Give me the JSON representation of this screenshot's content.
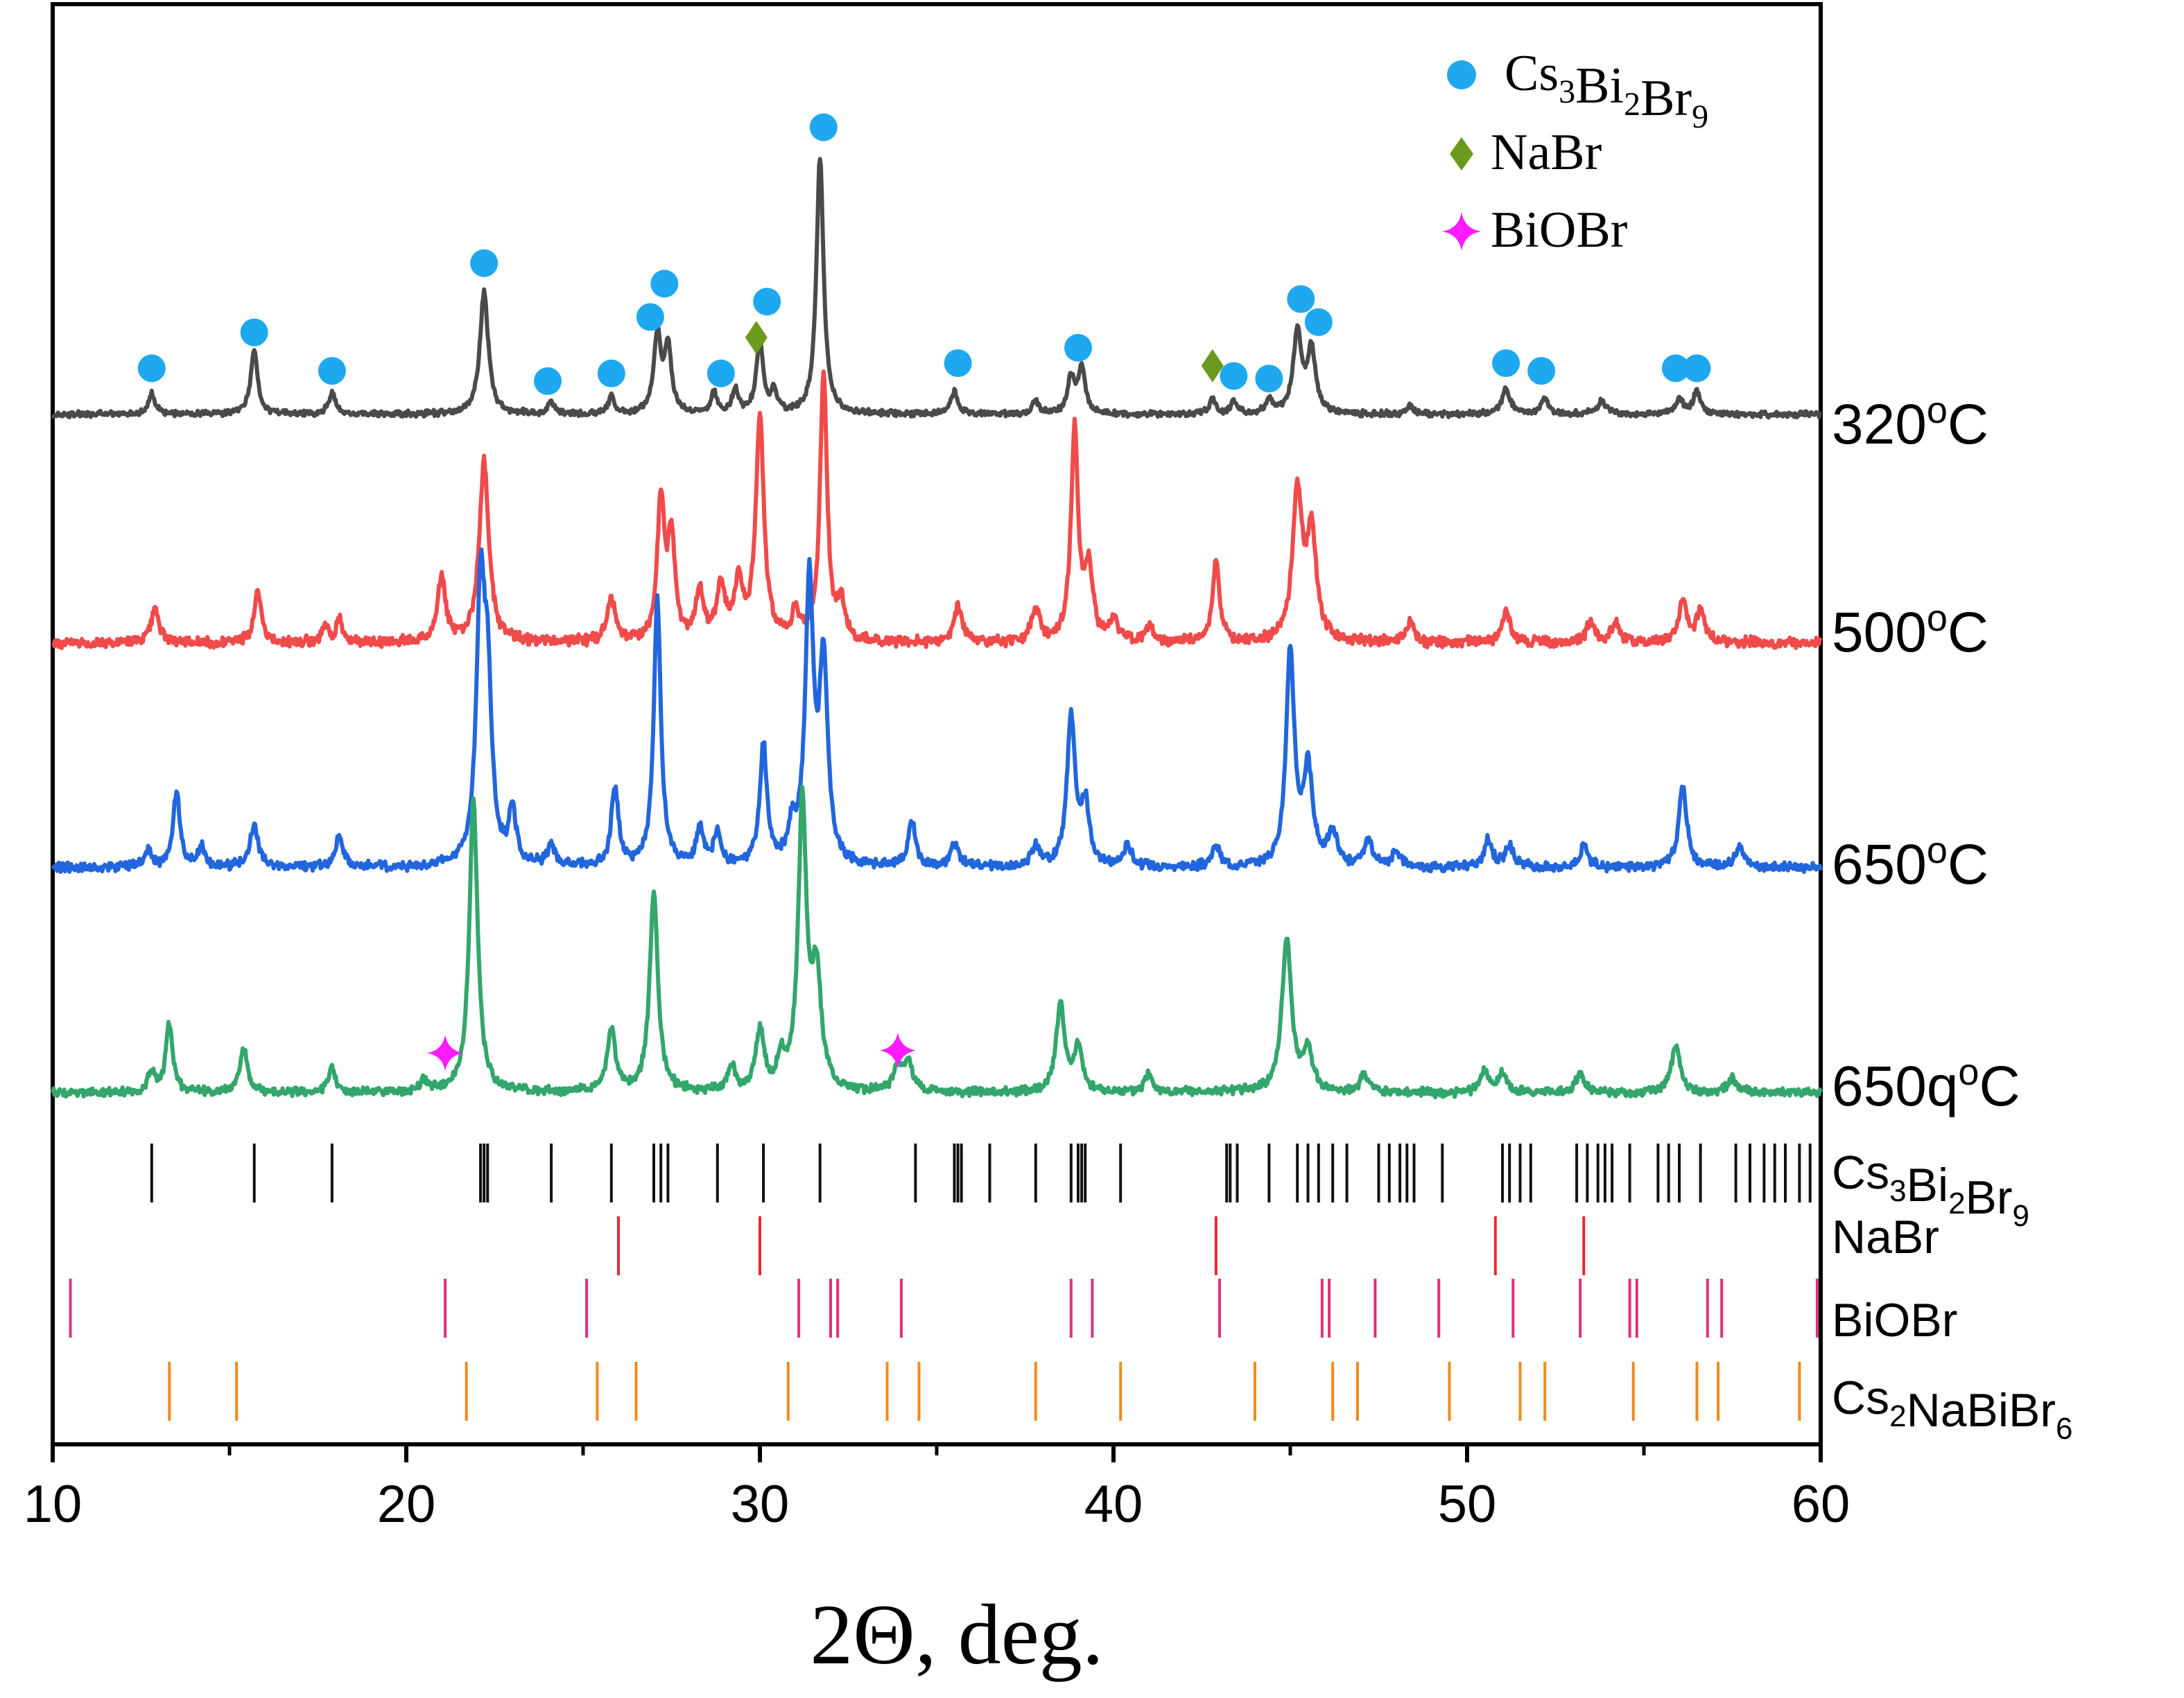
{
  "chart_data": {
    "type": "line",
    "title": "",
    "xlabel": "2Θ, deg.",
    "ylabel": "",
    "xlim": [
      10,
      60
    ],
    "xticks": [
      10,
      20,
      30,
      40,
      50,
      60
    ],
    "xtick_labels": [
      "10",
      "20",
      "30",
      "40",
      "50",
      "60"
    ],
    "legend": {
      "placement": "top-right",
      "entries": [
        {
          "name": "Cs3Bi2Br9",
          "text": "Cs",
          "sub": [
            "3",
            "2",
            "9"
          ],
          "parts": [
            "Cs",
            "Bi",
            "Br"
          ],
          "marker": "circle",
          "color": "#1ea8f0"
        },
        {
          "name": "NaBr",
          "text": "NaBr",
          "marker": "diamond",
          "color": "#6b9a1e"
        },
        {
          "name": "BiOBr",
          "text": "BiOBr",
          "marker": "star",
          "color": "#ff1aff"
        }
      ]
    },
    "series": [
      {
        "name": "320oC",
        "label": "320",
        "label_sup": "o",
        "label_unit": "C",
        "color": "#4a4a4a",
        "baseline": 0,
        "noise": 0.9,
        "peaks": [
          [
            12.8,
            8,
            0.12
          ],
          [
            15.7,
            25,
            0.12
          ],
          [
            17.9,
            8,
            0.12
          ],
          [
            22.2,
            48,
            0.14
          ],
          [
            24.1,
            5,
            0.1
          ],
          [
            25.8,
            7,
            0.1
          ],
          [
            27.1,
            30,
            0.12
          ],
          [
            27.4,
            26,
            0.12
          ],
          [
            28.7,
            8,
            0.1
          ],
          [
            29.3,
            10,
            0.1
          ],
          [
            30.0,
            28,
            0.12
          ],
          [
            30.4,
            8,
            0.1
          ],
          [
            31.7,
            100,
            0.12
          ],
          [
            35.5,
            9,
            0.12
          ],
          [
            37.8,
            5,
            0.12
          ],
          [
            38.8,
            14,
            0.12
          ],
          [
            39.1,
            18,
            0.12
          ],
          [
            42.8,
            6,
            0.1
          ],
          [
            43.4,
            5,
            0.1
          ],
          [
            44.4,
            6,
            0.1
          ],
          [
            45.2,
            32,
            0.14
          ],
          [
            45.6,
            25,
            0.14
          ],
          [
            48.4,
            3,
            0.12
          ],
          [
            51.1,
            10,
            0.14
          ],
          [
            52.2,
            6,
            0.12
          ],
          [
            53.8,
            5,
            0.15
          ],
          [
            56.0,
            6,
            0.12
          ],
          [
            56.5,
            9,
            0.12
          ]
        ],
        "markers": [
          {
            "x": 12.8,
            "type": "circle",
            "h": 18
          },
          {
            "x": 15.7,
            "type": "circle",
            "h": 32
          },
          {
            "x": 17.9,
            "type": "circle",
            "h": 17
          },
          {
            "x": 22.2,
            "type": "circle",
            "h": 59
          },
          {
            "x": 24.0,
            "type": "circle",
            "h": 13
          },
          {
            "x": 25.8,
            "type": "circle",
            "h": 16
          },
          {
            "x": 26.9,
            "type": "circle",
            "h": 38
          },
          {
            "x": 27.3,
            "type": "circle",
            "h": 51
          },
          {
            "x": 28.9,
            "type": "circle",
            "h": 16
          },
          {
            "x": 30.2,
            "type": "circle",
            "h": 44
          },
          {
            "x": 31.8,
            "type": "circle",
            "h": 112
          },
          {
            "x": 35.6,
            "type": "circle",
            "h": 20
          },
          {
            "x": 39.0,
            "type": "circle",
            "h": 26
          },
          {
            "x": 43.4,
            "type": "circle",
            "h": 15
          },
          {
            "x": 44.4,
            "type": "circle",
            "h": 14
          },
          {
            "x": 45.3,
            "type": "circle",
            "h": 45
          },
          {
            "x": 45.8,
            "type": "circle",
            "h": 36
          },
          {
            "x": 51.1,
            "type": "circle",
            "h": 20
          },
          {
            "x": 52.1,
            "type": "circle",
            "h": 17
          },
          {
            "x": 55.9,
            "type": "circle",
            "h": 18
          },
          {
            "x": 56.5,
            "type": "circle",
            "h": 18
          },
          {
            "x": 29.9,
            "type": "diamond",
            "h": 30
          },
          {
            "x": 42.8,
            "type": "diamond",
            "h": 19
          }
        ]
      },
      {
        "name": "500oC",
        "label": "500",
        "label_sup": "o",
        "label_unit": "C",
        "color": "#f04a4a",
        "baseline": 0,
        "noise": 1.6,
        "peaks": [
          [
            12.9,
            12,
            0.14
          ],
          [
            15.8,
            20,
            0.12
          ],
          [
            17.7,
            6,
            0.1
          ],
          [
            18.1,
            9,
            0.1
          ],
          [
            21.0,
            24,
            0.14
          ],
          [
            22.2,
            68,
            0.16
          ],
          [
            25.8,
            16,
            0.14
          ],
          [
            27.2,
            53,
            0.12
          ],
          [
            27.5,
            38,
            0.12
          ],
          [
            28.3,
            18,
            0.14
          ],
          [
            28.9,
            20,
            0.14
          ],
          [
            29.4,
            22,
            0.14
          ],
          [
            30.0,
            83,
            0.14
          ],
          [
            31.0,
            10,
            0.12
          ],
          [
            31.8,
            100,
            0.12
          ],
          [
            32.3,
            14,
            0.12
          ],
          [
            35.6,
            14,
            0.14
          ],
          [
            37.8,
            12,
            0.14
          ],
          [
            38.9,
            80,
            0.12
          ],
          [
            39.3,
            26,
            0.14
          ],
          [
            40.0,
            8,
            0.14
          ],
          [
            41.0,
            6,
            0.14
          ],
          [
            42.9,
            30,
            0.12
          ],
          [
            45.2,
            56,
            0.16
          ],
          [
            45.6,
            40,
            0.16
          ],
          [
            48.4,
            8,
            0.12
          ],
          [
            51.1,
            12,
            0.14
          ],
          [
            53.5,
            8,
            0.14
          ],
          [
            54.2,
            7,
            0.14
          ],
          [
            56.1,
            16,
            0.14
          ],
          [
            56.6,
            12,
            0.14
          ]
        ],
        "markers": []
      },
      {
        "name": "650oC",
        "label": "650",
        "label_sup": "o",
        "label_unit": "C",
        "color": "#2266dd",
        "baseline": 0,
        "noise": 1.4,
        "peaks": [
          [
            12.7,
            6,
            0.12
          ],
          [
            13.5,
            28,
            0.12
          ],
          [
            14.2,
            8,
            0.1
          ],
          [
            15.7,
            16,
            0.14
          ],
          [
            18.1,
            12,
            0.12
          ],
          [
            22.1,
            98,
            0.14
          ],
          [
            22.3,
            60,
            0.14
          ],
          [
            23.0,
            20,
            0.12
          ],
          [
            24.1,
            8,
            0.12
          ],
          [
            25.9,
            30,
            0.12
          ],
          [
            27.1,
            100,
            0.12
          ],
          [
            28.3,
            14,
            0.12
          ],
          [
            28.8,
            12,
            0.12
          ],
          [
            30.1,
            45,
            0.12
          ],
          [
            30.9,
            12,
            0.12
          ],
          [
            31.4,
            105,
            0.14
          ],
          [
            31.8,
            75,
            0.14
          ],
          [
            34.3,
            17,
            0.12
          ],
          [
            35.5,
            8,
            0.14
          ],
          [
            37.8,
            7,
            0.14
          ],
          [
            38.8,
            55,
            0.14
          ],
          [
            39.2,
            22,
            0.14
          ],
          [
            40.4,
            8,
            0.14
          ],
          [
            42.9,
            8,
            0.12
          ],
          [
            45.0,
            80,
            0.14
          ],
          [
            45.5,
            35,
            0.16
          ],
          [
            46.2,
            12,
            0.16
          ],
          [
            47.2,
            10,
            0.12
          ],
          [
            48.0,
            6,
            0.14
          ],
          [
            50.6,
            10,
            0.14
          ],
          [
            51.2,
            8,
            0.14
          ],
          [
            53.3,
            8,
            0.14
          ],
          [
            56.1,
            30,
            0.14
          ],
          [
            57.7,
            8,
            0.14
          ]
        ],
        "markers": []
      },
      {
        "name": "650qoC",
        "label": "650q",
        "label_sup": "o",
        "label_unit": "C",
        "color": "#33a66b",
        "baseline": 0,
        "noise": 1.4,
        "peaks": [
          [
            12.8,
            8,
            0.12
          ],
          [
            13.3,
            27,
            0.12
          ],
          [
            15.4,
            17,
            0.14
          ],
          [
            17.9,
            10,
            0.12
          ],
          [
            20.5,
            5,
            0.14
          ],
          [
            21.9,
            118,
            0.14
          ],
          [
            25.8,
            25,
            0.14
          ],
          [
            27.0,
            80,
            0.14
          ],
          [
            29.2,
            10,
            0.12
          ],
          [
            30.0,
            24,
            0.14
          ],
          [
            30.6,
            12,
            0.12
          ],
          [
            31.2,
            114,
            0.14
          ],
          [
            31.6,
            45,
            0.16
          ],
          [
            33.9,
            10,
            0.14
          ],
          [
            34.2,
            12,
            0.14
          ],
          [
            38.5,
            36,
            0.14
          ],
          [
            39.0,
            18,
            0.14
          ],
          [
            41.0,
            8,
            0.14
          ],
          [
            44.9,
            62,
            0.16
          ],
          [
            45.5,
            16,
            0.16
          ],
          [
            47.1,
            7,
            0.14
          ],
          [
            50.5,
            8,
            0.14
          ],
          [
            51.0,
            8,
            0.14
          ],
          [
            53.2,
            8,
            0.14
          ],
          [
            55.9,
            18,
            0.16
          ],
          [
            57.5,
            6,
            0.14
          ]
        ],
        "markers": [
          {
            "x": 21.1,
            "type": "star",
            "h": 16
          },
          {
            "x": 33.9,
            "type": "star",
            "h": 17
          }
        ]
      }
    ],
    "reference_patterns": [
      {
        "name": "Cs3Bi2Br9",
        "label": "Cs",
        "sub": [
          "3",
          "2",
          "9"
        ],
        "parts": [
          "Cs",
          "Bi",
          "Br"
        ],
        "color": "#111111",
        "positions": [
          12.8,
          15.7,
          17.9,
          22.1,
          22.2,
          22.3,
          24.1,
          25.8,
          27.0,
          27.2,
          27.4,
          28.8,
          30.1,
          31.7,
          34.4,
          35.5,
          35.6,
          35.7,
          36.5,
          37.8,
          38.8,
          39.0,
          39.1,
          39.2,
          40.2,
          43.2,
          43.3,
          43.5,
          44.4,
          45.2,
          45.5,
          45.8,
          46.2,
          46.6,
          47.5,
          47.8,
          48.1,
          48.3,
          48.5,
          49.3,
          51.0,
          51.2,
          51.5,
          51.8,
          53.1,
          53.4,
          53.7,
          53.9,
          54.1,
          54.6,
          55.4,
          55.7,
          56.0,
          56.6,
          57.6,
          58.0,
          58.4,
          58.7,
          59.0,
          59.4,
          59.7
        ]
      },
      {
        "name": "NaBr",
        "label": "NaBr",
        "color": "#e8292f",
        "positions": [
          26.0,
          30.0,
          42.9,
          50.8,
          53.3
        ]
      },
      {
        "name": "BiOBr",
        "label": "BiOBr",
        "color": "#e0307a",
        "positions": [
          10.5,
          21.1,
          25.1,
          31.1,
          32.0,
          32.2,
          34.0,
          38.8,
          39.4,
          43.0,
          45.9,
          46.1,
          47.4,
          49.2,
          51.3,
          53.2,
          54.6,
          54.8,
          56.8,
          57.2,
          59.9
        ]
      },
      {
        "name": "Cs2NaBiBr6",
        "label": "Cs",
        "sub": [
          "2",
          "6"
        ],
        "parts": [
          "Cs",
          "NaBiBr"
        ],
        "color": "#f08a1c",
        "positions": [
          13.3,
          15.2,
          21.7,
          25.4,
          26.5,
          30.8,
          33.6,
          34.5,
          37.8,
          40.2,
          44.0,
          46.2,
          46.9,
          49.5,
          51.5,
          52.2,
          54.7,
          56.5,
          57.1,
          59.4
        ]
      }
    ]
  }
}
